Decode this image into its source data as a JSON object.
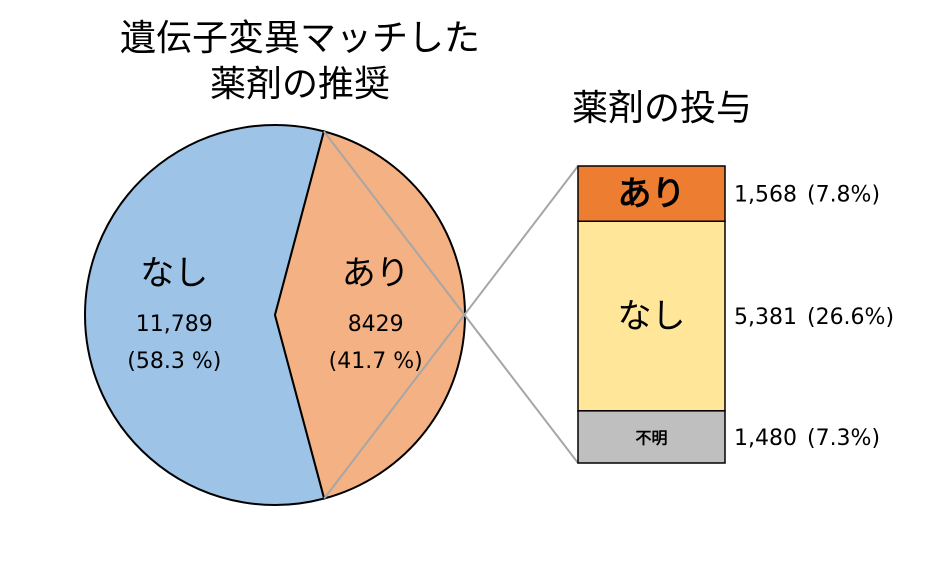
{
  "chart_data": [
    {
      "type": "pie",
      "title": [
        "遺伝子変異マッチした",
        "薬剤の推奨"
      ],
      "categories": [
        "なし",
        "あり"
      ],
      "values": [
        11789,
        8429
      ],
      "value_labels": [
        "11,789",
        "8429"
      ],
      "percentages": [
        58.3,
        41.7
      ],
      "percentage_labels": [
        "(58.3 %)",
        "(41.7 %)"
      ],
      "colors": [
        "#9dc3e6",
        "#f4b183"
      ]
    },
    {
      "type": "stacked_bar",
      "title": "薬剤の投与",
      "categories": [
        "あり",
        "なし",
        "不明"
      ],
      "values": [
        1568,
        5381,
        1480
      ],
      "value_labels": [
        "1,568",
        "5,381",
        "1,480"
      ],
      "percentages": [
        7.8,
        26.6,
        7.3
      ],
      "percentage_labels": [
        "(7.8%)",
        "(26.6%)",
        "(7.3%)"
      ],
      "colors": [
        "#ed7d31",
        "#ffe699",
        "#bfbfbf"
      ]
    }
  ]
}
